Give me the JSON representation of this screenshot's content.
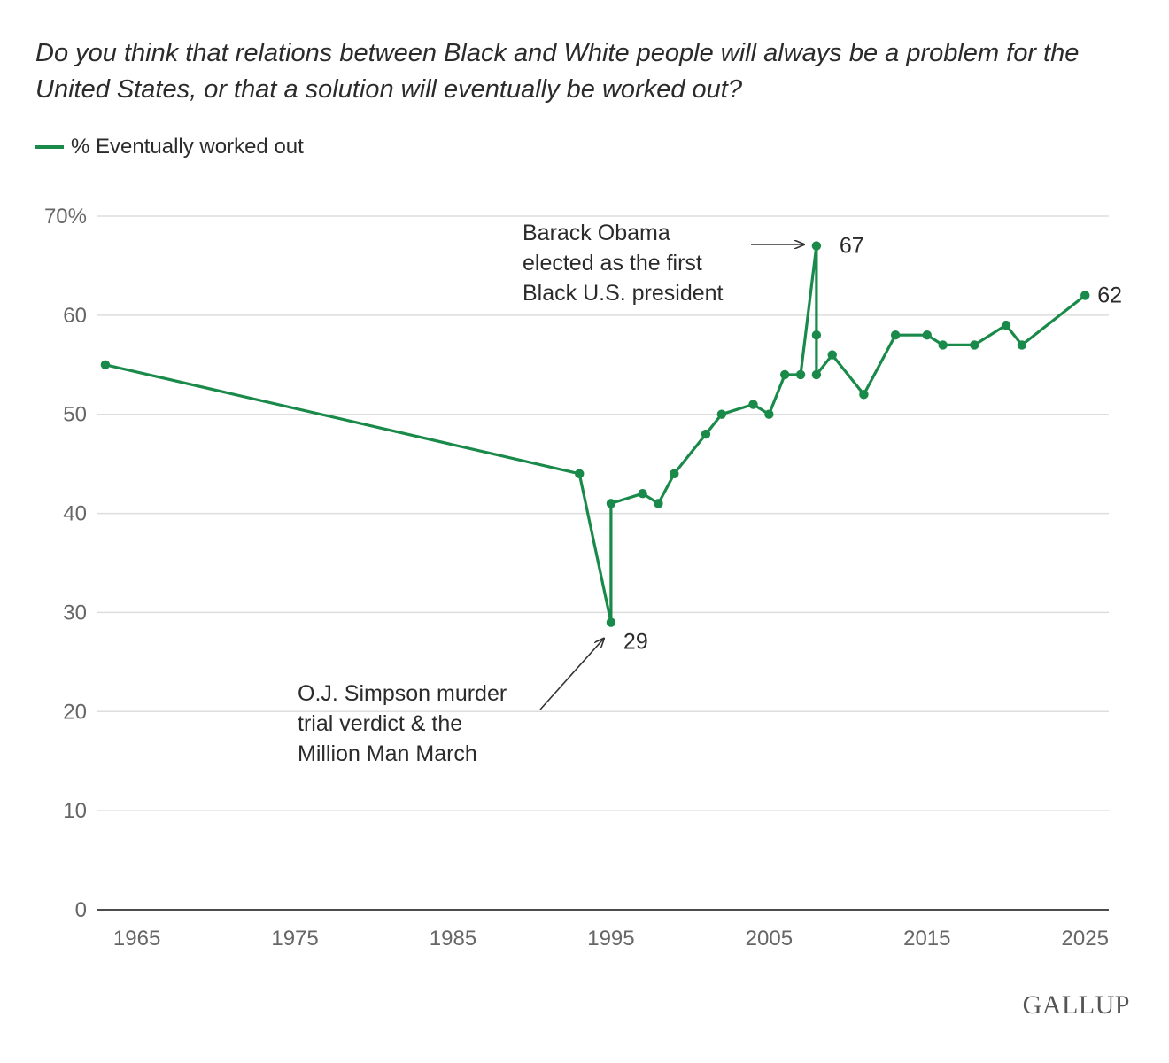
{
  "title": "Do you think that relations between Black and White people will always be a problem for the United States, or that a solution will eventually be worked out?",
  "legend": {
    "label": "% Eventually worked out"
  },
  "colors": {
    "series": "#1a8a4a",
    "grid": "#dddddd",
    "axis": "#333333",
    "arrow": "#333333"
  },
  "logo": "GALLUP",
  "chart_data": {
    "type": "line",
    "title": "Do you think that relations between Black and White people will always be a problem for the United States, or that a solution will eventually be worked out?",
    "xlabel": "",
    "ylabel": "",
    "xlim": [
      1962.5,
      2026.5
    ],
    "ylim": [
      0,
      70
    ],
    "x_ticks": [
      1965,
      1975,
      1985,
      1995,
      2005,
      2015,
      2025
    ],
    "y_ticks": [
      0,
      10,
      20,
      30,
      40,
      50,
      60,
      70
    ],
    "y_tick_labels": [
      "0",
      "10",
      "20",
      "30",
      "40",
      "50",
      "60",
      "70%"
    ],
    "grid": true,
    "legend_position": "top-left",
    "series": [
      {
        "name": "% Eventually worked out",
        "x": [
          1963,
          1993,
          1995,
          1995,
          1997,
          1998,
          1999,
          2001,
          2002,
          2004,
          2005,
          2006,
          2007,
          2008,
          2008,
          2008,
          2009,
          2011,
          2013,
          2015,
          2016,
          2018,
          2020,
          2021,
          2025
        ],
        "y": [
          55,
          44,
          29,
          41,
          42,
          41,
          44,
          48,
          50,
          51,
          50,
          54,
          54,
          67,
          58,
          54,
          56,
          52,
          58,
          58,
          57,
          57,
          59,
          57,
          62
        ]
      }
    ],
    "data_labels": [
      {
        "x": 1995,
        "y": 29,
        "text": "29"
      },
      {
        "x": 2008,
        "y": 67,
        "text": "67"
      },
      {
        "x": 2025,
        "y": 62,
        "text": "62"
      }
    ],
    "annotations": [
      {
        "lines": [
          "Barack Obama",
          "elected as the first",
          "Black U.S. president"
        ],
        "target_x": 2008,
        "target_y": 67
      },
      {
        "lines": [
          "O.J. Simpson murder",
          "trial verdict & the",
          "Million Man March"
        ],
        "target_x": 1995,
        "target_y": 29
      }
    ]
  }
}
